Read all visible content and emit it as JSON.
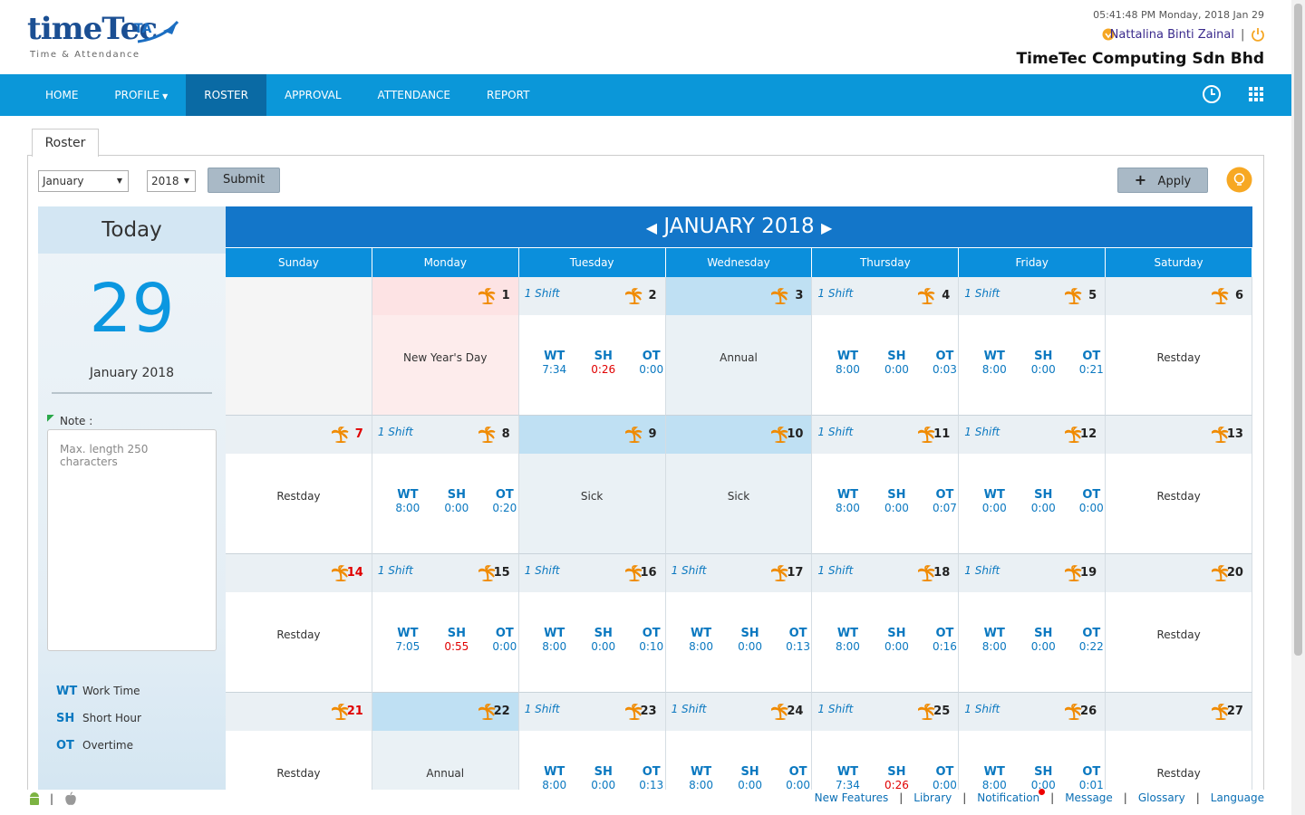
{
  "header": {
    "logo": "timeTec",
    "logo_badge": "TA",
    "logo_tagline": "Time & Attendance",
    "datetime": "05:41:48 PM Monday, 2018 Jan 29",
    "user": "Nattalina Binti Zainal",
    "company": "TimeTec Computing Sdn Bhd"
  },
  "nav": {
    "items": [
      "HOME",
      "PROFILE",
      "ROSTER",
      "APPROVAL",
      "ATTENDANCE",
      "REPORT"
    ],
    "active": 2,
    "dropdown": 1
  },
  "tab": "Roster",
  "controls": {
    "month": "January",
    "year": 2018,
    "submit": "Submit",
    "apply": "Apply"
  },
  "today": {
    "title": "Today",
    "day": 29,
    "month_year": "January 2018",
    "note_label": "Note :",
    "note_placeholder": "Max. length 250 characters",
    "legend": [
      {
        "abbr": "WT",
        "label": "Work Time"
      },
      {
        "abbr": "SH",
        "label": "Short Hour"
      },
      {
        "abbr": "OT",
        "label": "Overtime"
      }
    ]
  },
  "calendar": {
    "title": "JANUARY 2018",
    "weekdays": [
      "Sunday",
      "Monday",
      "Tuesday",
      "Wednesday",
      "Thursday",
      "Friday",
      "Saturday"
    ],
    "weeks": [
      [
        null,
        {
          "day": 1,
          "label": "New Year's Day",
          "style": "holiday"
        },
        {
          "day": 2,
          "shift": "1 Shift",
          "wt": "7:34",
          "sh": "0:26",
          "ot": "0:00",
          "sh_color": "#e00000"
        },
        {
          "day": 3,
          "label": "Annual",
          "style": "leave"
        },
        {
          "day": 4,
          "shift": "1 Shift",
          "wt": "8:00",
          "sh": "0:00",
          "ot": "0:03"
        },
        {
          "day": 5,
          "shift": "1 Shift",
          "wt": "8:00",
          "sh": "0:00",
          "ot": "0:21"
        },
        {
          "day": 6,
          "label": "Restday"
        }
      ],
      [
        {
          "day": 7,
          "label": "Restday"
        },
        {
          "day": 8,
          "shift": "1 Shift",
          "wt": "8:00",
          "sh": "0:00",
          "ot": "0:20"
        },
        {
          "day": 9,
          "label": "Sick",
          "style": "leave"
        },
        {
          "day": 10,
          "label": "Sick",
          "style": "leave"
        },
        {
          "day": 11,
          "shift": "1 Shift",
          "wt": "8:00",
          "sh": "0:00",
          "ot": "0:07"
        },
        {
          "day": 12,
          "shift": "1 Shift",
          "wt": "0:00",
          "sh": "0:00",
          "ot": "0:00"
        },
        {
          "day": 13,
          "label": "Restday"
        }
      ],
      [
        {
          "day": 14,
          "label": "Restday"
        },
        {
          "day": 15,
          "shift": "1 Shift",
          "wt": "7:05",
          "sh": "0:55",
          "ot": "0:00",
          "sh_color": "#e00000"
        },
        {
          "day": 16,
          "shift": "1 Shift",
          "wt": "8:00",
          "sh": "0:00",
          "ot": "0:10"
        },
        {
          "day": 17,
          "shift": "1 Shift",
          "wt": "8:00",
          "sh": "0:00",
          "ot": "0:13"
        },
        {
          "day": 18,
          "shift": "1 Shift",
          "wt": "8:00",
          "sh": "0:00",
          "ot": "0:16"
        },
        {
          "day": 19,
          "shift": "1 Shift",
          "wt": "8:00",
          "sh": "0:00",
          "ot": "0:22"
        },
        {
          "day": 20,
          "label": "Restday"
        }
      ],
      [
        {
          "day": 21,
          "label": "Restday"
        },
        {
          "day": 22,
          "label": "Annual",
          "style": "leave"
        },
        {
          "day": 23,
          "shift": "1 Shift",
          "wt": "8:00",
          "sh": "0:00",
          "ot": "0:13"
        },
        {
          "day": 24,
          "shift": "1 Shift",
          "wt": "8:00",
          "sh": "0:00",
          "ot": "0:00"
        },
        {
          "day": 25,
          "shift": "1 Shift",
          "wt": "7:34",
          "sh": "0:26",
          "ot": "0:00",
          "sh_color": "#e00000"
        },
        {
          "day": 26,
          "shift": "1 Shift",
          "wt": "8:00",
          "sh": "0:00",
          "ot": "0:01"
        },
        {
          "day": 27,
          "label": "Restday"
        }
      ]
    ]
  },
  "footer": {
    "links": [
      "New Features",
      "Library",
      "Notification",
      "Message",
      "Glossary",
      "Language"
    ]
  }
}
